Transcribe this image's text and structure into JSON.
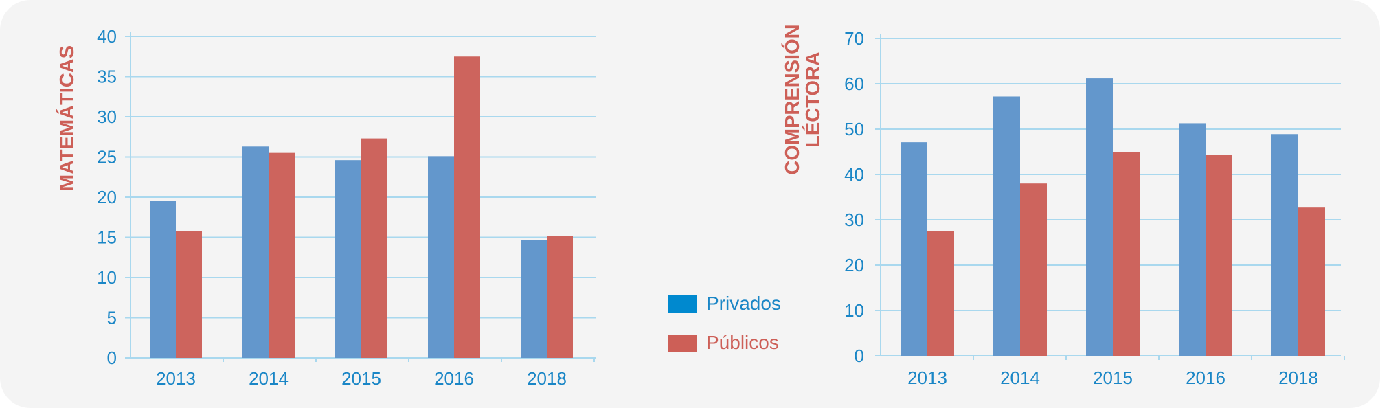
{
  "legend": {
    "items": [
      {
        "label": "Privados",
        "color": "#0089cf"
      },
      {
        "label": "Públicos",
        "color": "#cd5f57"
      }
    ]
  },
  "colors": {
    "privados_bar": "#6397cc",
    "publicos_bar": "#cd645d",
    "axis_text": "#1a86c6",
    "title_text": "#cd5f57",
    "gridline": "#a9d8ee",
    "background": "#f4f4f4"
  },
  "chart_data": [
    {
      "type": "bar",
      "ylabel": "MATEMÁTICAS",
      "categories": [
        "2013",
        "2014",
        "2015",
        "2016",
        "2018"
      ],
      "series": [
        {
          "name": "Privados",
          "values": [
            19.5,
            26.3,
            24.6,
            25.1,
            14.7
          ]
        },
        {
          "name": "Públicos",
          "values": [
            15.8,
            25.5,
            27.3,
            37.5,
            15.2
          ]
        }
      ],
      "ylim": [
        0,
        40
      ],
      "yticks": [
        "0",
        "5",
        "10",
        "15",
        "20",
        "25",
        "30",
        "35",
        "40"
      ],
      "grid": true,
      "legend": "right"
    },
    {
      "type": "bar",
      "ylabel": "COMPRENSIÓN LÉCTORA",
      "ylabel_lines": [
        "COMPRENSIÓN",
        "LÉCTORA"
      ],
      "categories": [
        "2013",
        "2014",
        "2015",
        "2016",
        "2018"
      ],
      "series": [
        {
          "name": "Privados",
          "values": [
            47.1,
            57.2,
            61.2,
            51.3,
            48.9
          ]
        },
        {
          "name": "Públicos",
          "values": [
            27.5,
            38.0,
            44.9,
            44.3,
            32.7
          ]
        }
      ],
      "ylim": [
        0,
        70
      ],
      "yticks": [
        "0",
        "10",
        "20",
        "30",
        "40",
        "50",
        "60",
        "70"
      ],
      "grid": true,
      "legend": "left"
    }
  ]
}
